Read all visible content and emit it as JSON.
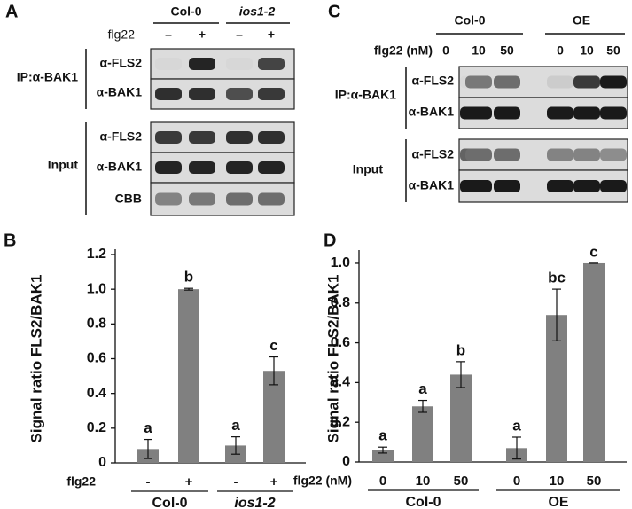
{
  "panels": {
    "A": {
      "label": "A",
      "groups": [
        "Col-0",
        "ios1-2"
      ],
      "treatment": "flg22",
      "lanes": [
        "–",
        "+",
        "–",
        "+"
      ],
      "ip_label": "IP:α-BAK1",
      "ip_rows": [
        "α-FLS2",
        "α-BAK1"
      ],
      "input_label": "Input",
      "input_rows": [
        "α-FLS2",
        "α-BAK1",
        "CBB"
      ]
    },
    "C": {
      "label": "C",
      "groups": [
        "Col-0",
        "OE"
      ],
      "treatment": "flg22 (nM)",
      "lanes": [
        "0",
        "10",
        "50",
        "0",
        "10",
        "50"
      ],
      "ip_label": "IP:α-BAK1",
      "ip_rows": [
        "α-FLS2",
        "α-BAK1"
      ],
      "input_label": "Input",
      "input_rows": [
        "α-FLS2",
        "α-BAK1"
      ]
    }
  },
  "chart_data": [
    {
      "type": "bar",
      "panel_label": "B",
      "y_label": "Signal ratio FLS2/BAK1",
      "x_row_label": "flg22",
      "categories": [
        "-",
        "+",
        "-",
        "+"
      ],
      "groups": [
        "Col-0",
        "ios1-2"
      ],
      "values": [
        0.08,
        1.0,
        0.1,
        0.53
      ],
      "errors": [
        0.055,
        0.005,
        0.05,
        0.08
      ],
      "annotations": [
        "a",
        "b",
        "a",
        "c"
      ],
      "color": "#808080",
      "ylim": [
        0,
        1.2
      ],
      "yticks": [
        0,
        0.2,
        0.4,
        0.6,
        0.8,
        {
          "value": 1,
          "label": "1.0"
        },
        1.2
      ]
    },
    {
      "type": "bar",
      "panel_label": "D",
      "y_label": "Signal ratio FLS2/BAK1",
      "x_row_label": "flg22 (nM)",
      "categories": [
        "0",
        "10",
        "50",
        "0",
        "10",
        "50"
      ],
      "groups": [
        "Col-0",
        "OE"
      ],
      "values": [
        0.06,
        0.28,
        0.44,
        0.07,
        0.74,
        1.0
      ],
      "errors": [
        0.015,
        0.03,
        0.065,
        0.055,
        0.13,
        0.0
      ],
      "annotations": [
        "a",
        "a",
        "b",
        "a",
        "bc",
        "c"
      ],
      "color": "#808080",
      "ylim": [
        0,
        1.04
      ],
      "yticks": [
        0,
        0.2,
        0.4,
        0.6,
        0.8,
        {
          "value": 1,
          "label": "1.0"
        }
      ]
    }
  ]
}
